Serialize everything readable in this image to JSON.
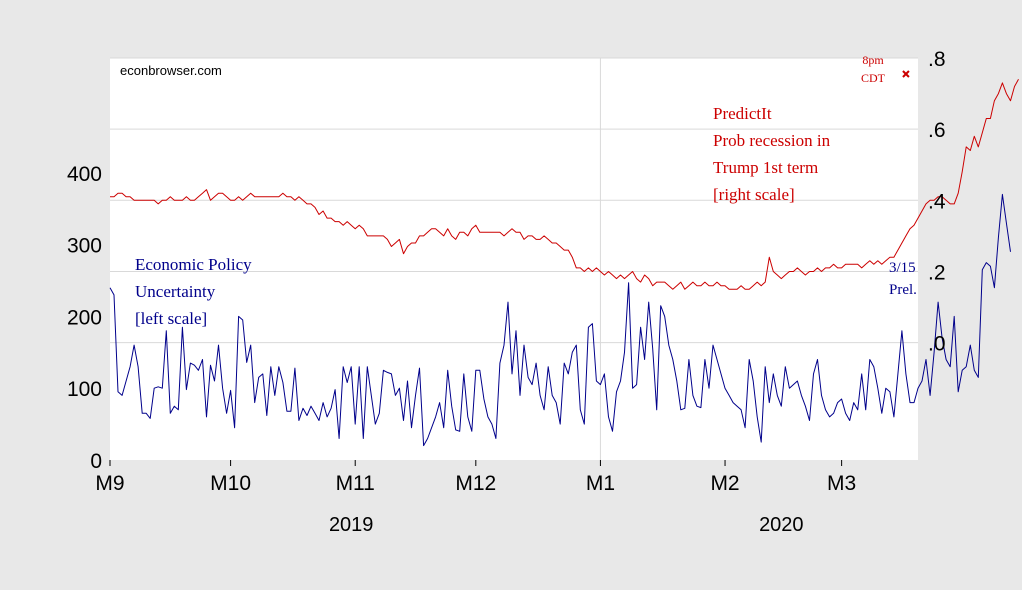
{
  "watermark": "econbrowser.com",
  "colors": {
    "epu": "#00008b",
    "predictit": "#cc0000",
    "grid": "#d9d9d9",
    "background": "#e8e8e8",
    "plot_background": "#ffffff"
  },
  "chart_data": {
    "type": "line",
    "x_tick_labels": [
      "M9",
      "M10",
      "M11",
      "M12",
      "M1",
      "M2",
      "M3"
    ],
    "x_tick_dates": [
      "2019-09-01",
      "2019-10-01",
      "2019-11-01",
      "2019-12-01",
      "2020-01-01",
      "2020-02-01",
      "2020-03-01"
    ],
    "x_range": [
      "2019-09-01",
      "2020-03-20"
    ],
    "year_labels": [
      {
        "label": "2019",
        "center": "2019-10-31"
      },
      {
        "label": "2020",
        "center": "2020-02-15"
      }
    ],
    "left_axis": {
      "range": [
        0,
        560
      ],
      "ticks": [
        0,
        100,
        200,
        300,
        400
      ],
      "tick_labels": [
        "0",
        "100",
        "200",
        "300",
        "400"
      ]
    },
    "right_axis": {
      "range": [
        -0.33,
        0.8
      ],
      "ticks": [
        0.0,
        0.2,
        0.4,
        0.6,
        0.8
      ],
      "tick_labels": [
        ".0",
        ".2",
        ".4",
        ".6",
        ".8"
      ]
    },
    "grid": true,
    "series": [
      {
        "name": "Economic Policy Uncertainty",
        "axis": "left",
        "x_start": "2019-09-01",
        "x_step_days": 1,
        "values": [
          240,
          230,
          95,
          90,
          110,
          130,
          160,
          130,
          65,
          65,
          58,
          100,
          102,
          100,
          180,
          65,
          75,
          70,
          185,
          98,
          135,
          132,
          125,
          140,
          60,
          132,
          110,
          160,
          100,
          65,
          97,
          45,
          200,
          195,
          136,
          160,
          80,
          115,
          120,
          62,
          130,
          90,
          130,
          108,
          68,
          68,
          128,
          55,
          72,
          62,
          75,
          65,
          55,
          80,
          60,
          72,
          98,
          30,
          130,
          108,
          130,
          50,
          130,
          30,
          130,
          90,
          50,
          65,
          125,
          122,
          120,
          90,
          100,
          55,
          110,
          45,
          90,
          128,
          20,
          30,
          45,
          60,
          80,
          45,
          125,
          75,
          42,
          40,
          120,
          60,
          40,
          125,
          125,
          85,
          60,
          50,
          30,
          135,
          160,
          220,
          120,
          180,
          90,
          160,
          115,
          105,
          135,
          90,
          70,
          130,
          90,
          80,
          50,
          135,
          120,
          150,
          160,
          70,
          50,
          185,
          190,
          110,
          105,
          120,
          60,
          40,
          95,
          110,
          150,
          247,
          100,
          105,
          185,
          140,
          220,
          155,
          70,
          215,
          200,
          160,
          140,
          110,
          70,
          72,
          140,
          90,
          75,
          73,
          140,
          100,
          160,
          140,
          120,
          100,
          90,
          80,
          75,
          70,
          45,
          140,
          110,
          60,
          25,
          130,
          80,
          120,
          90,
          75,
          130,
          100,
          105,
          110,
          90,
          75,
          55,
          120,
          140,
          90,
          70,
          60,
          65,
          80,
          85,
          65,
          55,
          80,
          70,
          120,
          70,
          140,
          130,
          100,
          65,
          100,
          95,
          60,
          120,
          180,
          120,
          80,
          80,
          100,
          110,
          140,
          90,
          150,
          220,
          170,
          140,
          130,
          200,
          95,
          125,
          130,
          160,
          125,
          115,
          265,
          275,
          270,
          240,
          310,
          370,
          330,
          290
        ]
      },
      {
        "name": "PredictIt Prob recession in Trump 1st term",
        "axis": "right",
        "x_start": "2019-09-01",
        "x_step_days": 1,
        "values": [
          0.41,
          0.41,
          0.42,
          0.42,
          0.41,
          0.41,
          0.4,
          0.4,
          0.4,
          0.4,
          0.4,
          0.4,
          0.39,
          0.4,
          0.4,
          0.41,
          0.4,
          0.4,
          0.4,
          0.41,
          0.4,
          0.4,
          0.41,
          0.42,
          0.43,
          0.4,
          0.41,
          0.42,
          0.42,
          0.41,
          0.4,
          0.4,
          0.41,
          0.4,
          0.41,
          0.42,
          0.41,
          0.41,
          0.41,
          0.41,
          0.41,
          0.41,
          0.41,
          0.42,
          0.41,
          0.41,
          0.4,
          0.41,
          0.4,
          0.39,
          0.39,
          0.38,
          0.36,
          0.37,
          0.35,
          0.35,
          0.34,
          0.34,
          0.33,
          0.34,
          0.33,
          0.32,
          0.33,
          0.32,
          0.3,
          0.3,
          0.3,
          0.3,
          0.3,
          0.29,
          0.27,
          0.28,
          0.29,
          0.25,
          0.27,
          0.28,
          0.28,
          0.3,
          0.3,
          0.31,
          0.32,
          0.32,
          0.31,
          0.3,
          0.32,
          0.3,
          0.29,
          0.31,
          0.31,
          0.3,
          0.32,
          0.33,
          0.31,
          0.31,
          0.31,
          0.31,
          0.31,
          0.31,
          0.3,
          0.31,
          0.32,
          0.31,
          0.31,
          0.29,
          0.3,
          0.3,
          0.29,
          0.29,
          0.3,
          0.29,
          0.28,
          0.28,
          0.27,
          0.26,
          0.26,
          0.24,
          0.21,
          0.21,
          0.2,
          0.21,
          0.2,
          0.21,
          0.2,
          0.19,
          0.2,
          0.19,
          0.18,
          0.19,
          0.18,
          0.19,
          0.2,
          0.18,
          0.17,
          0.19,
          0.18,
          0.16,
          0.17,
          0.17,
          0.17,
          0.16,
          0.15,
          0.16,
          0.17,
          0.15,
          0.16,
          0.17,
          0.16,
          0.16,
          0.17,
          0.16,
          0.16,
          0.17,
          0.16,
          0.16,
          0.15,
          0.15,
          0.15,
          0.16,
          0.15,
          0.15,
          0.16,
          0.17,
          0.16,
          0.17,
          0.24,
          0.2,
          0.19,
          0.18,
          0.19,
          0.2,
          0.2,
          0.21,
          0.2,
          0.19,
          0.2,
          0.2,
          0.21,
          0.2,
          0.21,
          0.21,
          0.22,
          0.21,
          0.21,
          0.22,
          0.22,
          0.22,
          0.22,
          0.21,
          0.22,
          0.23,
          0.22,
          0.23,
          0.22,
          0.23,
          0.24,
          0.24,
          0.26,
          0.28,
          0.3,
          0.32,
          0.33,
          0.35,
          0.37,
          0.39,
          0.4,
          0.4,
          0.41,
          0.41,
          0.4,
          0.39,
          0.39,
          0.42,
          0.48,
          0.55,
          0.54,
          0.58,
          0.55,
          0.59,
          0.63,
          0.63,
          0.68,
          0.7,
          0.73,
          0.7,
          0.68,
          0.72,
          0.74
        ]
      },
      {
        "name": "8pm CDT",
        "axis": "right",
        "type": "scatter",
        "marker": "x",
        "x": [
          "2020-03-17"
        ],
        "values": [
          0.755
        ]
      }
    ],
    "annotations": [
      {
        "id": "epu",
        "lines": [
          "Economic Policy",
          "Uncertainty",
          "[left scale]"
        ],
        "color": "#00008b"
      },
      {
        "id": "predictit",
        "lines": [
          "PredictIt",
          "Prob recession in",
          "Trump 1st term",
          "[right scale]"
        ],
        "color": "#cc0000"
      },
      {
        "id": "prelim",
        "lines": [
          "3/15",
          "Prel."
        ],
        "color": "#00008b"
      },
      {
        "id": "time",
        "lines": [
          "8pm",
          "CDT"
        ],
        "color": "#cc0000"
      }
    ]
  }
}
